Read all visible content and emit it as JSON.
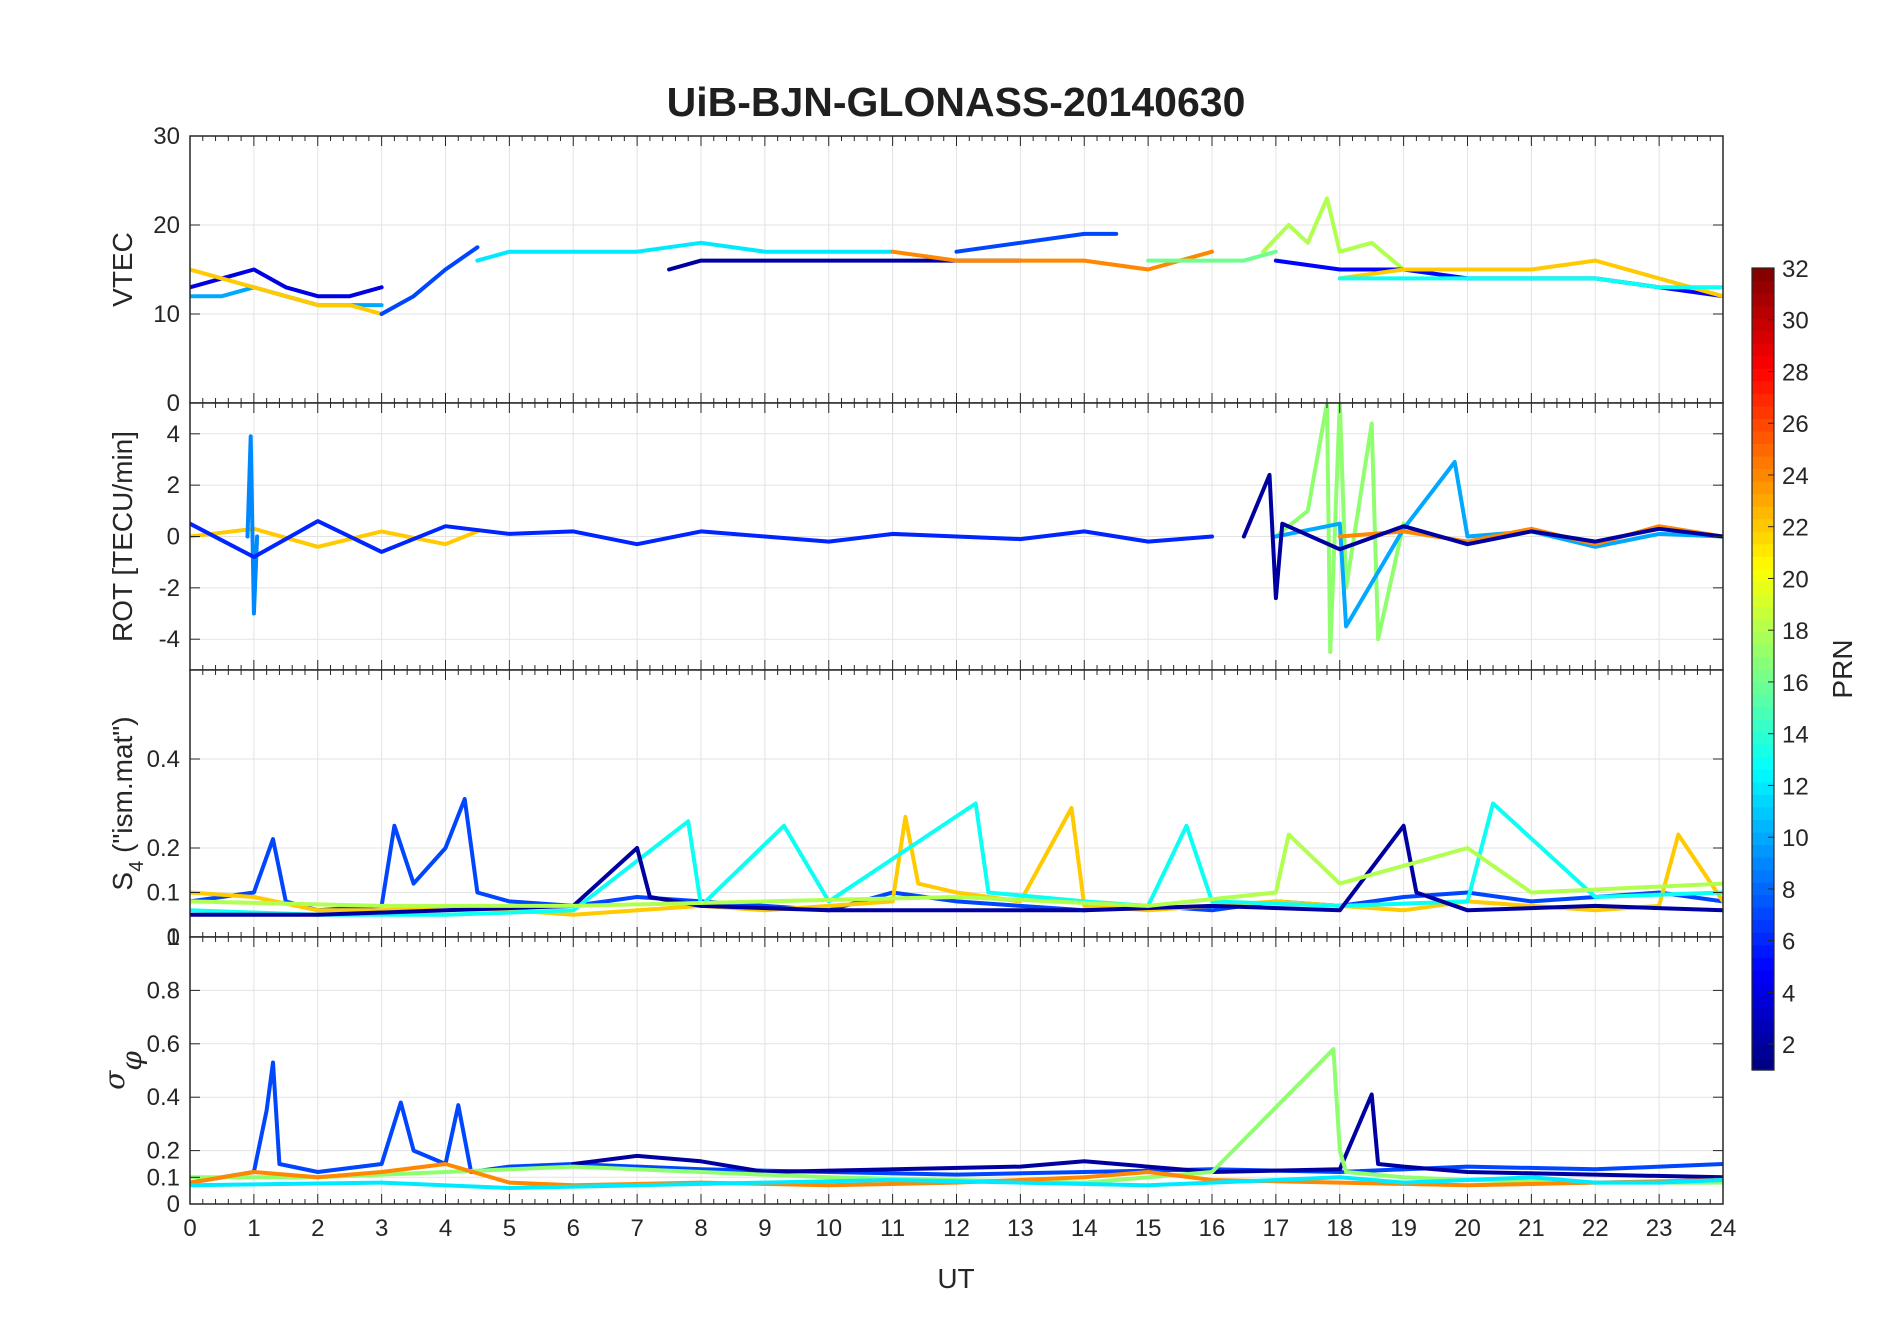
{
  "figure": {
    "title": "UiB-BJN-GLONASS-20140630",
    "xlabel": "UT"
  },
  "colorbar": {
    "label": "PRN",
    "range": [
      1,
      32
    ],
    "tick_labels": [
      "2",
      "4",
      "6",
      "8",
      "10",
      "12",
      "14",
      "16",
      "18",
      "20",
      "22",
      "24",
      "26",
      "28",
      "30",
      "32"
    ],
    "colormap": "jet"
  },
  "chart_data": [
    {
      "type": "line",
      "panel": "vtec",
      "ylabel": "VTEC",
      "xlim": [
        0,
        24
      ],
      "ylim": [
        0,
        30
      ],
      "yticks": [
        "0",
        "10",
        "20",
        "30"
      ],
      "xticks": [
        "0",
        "1",
        "2",
        "3",
        "4",
        "5",
        "6",
        "7",
        "8",
        "9",
        "10",
        "11",
        "12",
        "13",
        "14",
        "15",
        "16",
        "17",
        "18",
        "19",
        "20",
        "21",
        "22",
        "23",
        "24"
      ],
      "grid": true,
      "series": [
        {
          "prn": 4,
          "x": [
            0,
            0.5,
            1,
            1.5,
            2,
            2.5,
            3
          ],
          "y": [
            13,
            14,
            15,
            13,
            12,
            12,
            13
          ]
        },
        {
          "prn": 10,
          "x": [
            0,
            0.5,
            1,
            1.5,
            2,
            2.5,
            3
          ],
          "y": [
            12,
            12,
            13,
            12,
            11,
            11,
            11
          ]
        },
        {
          "prn": 22,
          "x": [
            0,
            0.5,
            1,
            1.5,
            2,
            2.5,
            3
          ],
          "y": [
            15,
            14,
            13,
            12,
            11,
            11,
            10
          ]
        },
        {
          "prn": 7,
          "x": [
            3,
            3.5,
            4,
            4.5
          ],
          "y": [
            10,
            12,
            15,
            17.5
          ]
        },
        {
          "prn": 12,
          "x": [
            4.5,
            5,
            6,
            7,
            8,
            9,
            10,
            11
          ],
          "y": [
            16,
            17,
            17,
            17,
            18,
            17,
            17,
            17
          ]
        },
        {
          "prn": 2,
          "x": [
            7.5,
            8,
            9,
            10,
            11,
            12,
            13
          ],
          "y": [
            15,
            16,
            16,
            16,
            16,
            16,
            16
          ]
        },
        {
          "prn": 24,
          "x": [
            11,
            12,
            13,
            14,
            15,
            16
          ],
          "y": [
            17,
            16,
            16,
            16,
            15,
            17
          ]
        },
        {
          "prn": 7,
          "x": [
            12,
            13,
            14,
            14.5
          ],
          "y": [
            17,
            18,
            19,
            19
          ]
        },
        {
          "prn": 16,
          "x": [
            15,
            16,
            16.5,
            17
          ],
          "y": [
            16,
            16,
            16,
            17
          ]
        },
        {
          "prn": 18,
          "x": [
            16.8,
            17.2,
            17.5,
            17.8,
            18,
            18.5,
            19
          ],
          "y": [
            17,
            20,
            18,
            23,
            17,
            18,
            15
          ]
        },
        {
          "prn": 5,
          "x": [
            17,
            18,
            19,
            20,
            21,
            22,
            23,
            24
          ],
          "y": [
            16,
            15,
            15,
            14,
            14,
            14,
            13,
            12
          ]
        },
        {
          "prn": 22,
          "x": [
            18,
            19,
            20,
            21,
            22,
            23,
            24
          ],
          "y": [
            14,
            15,
            15,
            15,
            16,
            14,
            12
          ]
        },
        {
          "prn": 13,
          "x": [
            18,
            19,
            20,
            21,
            22,
            23,
            24
          ],
          "y": [
            14,
            14,
            14,
            14,
            14,
            13,
            13
          ]
        }
      ]
    },
    {
      "type": "line",
      "panel": "rot",
      "ylabel": "ROT [TECU/min]",
      "xlim": [
        0,
        24
      ],
      "ylim": [
        -5.2,
        5.2
      ],
      "yticks": [
        "-4",
        "-2",
        "0",
        "2",
        "4"
      ],
      "xticks": [
        "0",
        "1",
        "2",
        "3",
        "4",
        "5",
        "6",
        "7",
        "8",
        "9",
        "10",
        "11",
        "12",
        "13",
        "14",
        "15",
        "16",
        "17",
        "18",
        "19",
        "20",
        "21",
        "22",
        "23",
        "24"
      ],
      "grid": true,
      "series": [
        {
          "prn": 22,
          "x": [
            0,
            1,
            2,
            3,
            4,
            4.5
          ],
          "y": [
            0,
            0.3,
            -0.4,
            0.2,
            -0.3,
            0.2
          ]
        },
        {
          "prn": 9,
          "x": [
            0.9,
            0.95,
            1,
            1.05
          ],
          "y": [
            0,
            3.9,
            -3,
            0
          ]
        },
        {
          "prn": 6,
          "x": [
            0,
            1,
            2,
            3,
            4,
            5,
            6,
            7,
            8,
            9,
            10,
            11,
            12,
            13,
            14,
            15,
            16
          ],
          "y": [
            0.5,
            -0.8,
            0.6,
            -0.6,
            0.4,
            0.1,
            0.2,
            -0.3,
            0.2,
            0,
            -0.2,
            0.1,
            0,
            -0.1,
            0.2,
            -0.2,
            0
          ]
        },
        {
          "prn": 17,
          "x": [
            17,
            17.5,
            17.8,
            17.85,
            18,
            18.1,
            18.5,
            18.6,
            19
          ],
          "y": [
            0,
            1,
            5.2,
            -4.5,
            5.2,
            -2,
            4.4,
            -4,
            0.5
          ]
        },
        {
          "prn": 10,
          "x": [
            17,
            18,
            18.1,
            19,
            19.8,
            20,
            21,
            22,
            23,
            24
          ],
          "y": [
            0,
            0.5,
            -3.5,
            0.3,
            2.9,
            0,
            0.2,
            -0.4,
            0.1,
            0
          ]
        },
        {
          "prn": 24,
          "x": [
            18,
            19,
            20,
            21,
            22,
            23,
            24
          ],
          "y": [
            0,
            0.2,
            -0.2,
            0.3,
            -0.3,
            0.4,
            0
          ]
        },
        {
          "prn": 2,
          "x": [
            16.5,
            16.9,
            17,
            17.1,
            18,
            19,
            20,
            21,
            22,
            23,
            24
          ],
          "y": [
            0,
            2.4,
            -2.4,
            0.5,
            -0.5,
            0.4,
            -0.3,
            0.2,
            -0.2,
            0.3,
            0
          ]
        }
      ]
    },
    {
      "type": "line",
      "panel": "s4",
      "ylabel": "S4 (\"ism.mat\")",
      "ylabel_main": "S",
      "ylabel_sub": "4",
      "ylabel_tail": " (\"ism.mat\")",
      "xlim": [
        0,
        24
      ],
      "ylim": [
        0,
        0.6
      ],
      "yticks": [
        "0",
        "0.1",
        "0.2",
        "0.4"
      ],
      "xticks": [
        "0",
        "1",
        "2",
        "3",
        "4",
        "5",
        "6",
        "7",
        "8",
        "9",
        "10",
        "11",
        "12",
        "13",
        "14",
        "15",
        "16",
        "17",
        "18",
        "19",
        "20",
        "21",
        "22",
        "23",
        "24"
      ],
      "grid": true,
      "series": [
        {
          "prn": 7,
          "x": [
            0,
            1,
            1.3,
            1.5,
            2,
            3,
            3.2,
            3.5,
            4,
            4.3,
            4.5,
            5,
            6,
            7,
            8,
            9,
            10,
            11,
            12,
            13,
            14,
            15,
            16,
            17,
            18,
            19,
            20,
            21,
            22,
            23,
            24
          ],
          "y": [
            0.08,
            0.1,
            0.22,
            0.08,
            0.06,
            0.07,
            0.25,
            0.12,
            0.2,
            0.31,
            0.1,
            0.08,
            0.07,
            0.09,
            0.08,
            0.07,
            0.06,
            0.1,
            0.08,
            0.07,
            0.06,
            0.07,
            0.06,
            0.08,
            0.07,
            0.09,
            0.1,
            0.08,
            0.09,
            0.1,
            0.08
          ]
        },
        {
          "prn": 22,
          "x": [
            0,
            1,
            2,
            3,
            4,
            5,
            6,
            7,
            8,
            9,
            10,
            11,
            11.2,
            11.4,
            12,
            13,
            13.8,
            14,
            15,
            16,
            17,
            18,
            19,
            20,
            21,
            22,
            23,
            23.3,
            24
          ],
          "y": [
            0.1,
            0.09,
            0.06,
            0.06,
            0.07,
            0.06,
            0.05,
            0.06,
            0.07,
            0.06,
            0.07,
            0.08,
            0.27,
            0.12,
            0.1,
            0.08,
            0.29,
            0.07,
            0.06,
            0.07,
            0.08,
            0.07,
            0.06,
            0.08,
            0.07,
            0.06,
            0.07,
            0.23,
            0.08
          ]
        },
        {
          "prn": 13,
          "x": [
            0,
            2,
            4,
            6,
            7.8,
            8,
            9.3,
            10,
            12.3,
            12.5,
            14,
            15,
            15.6,
            16,
            18,
            20,
            20.4,
            22,
            24
          ],
          "y": [
            0.06,
            0.05,
            0.05,
            0.06,
            0.26,
            0.07,
            0.25,
            0.08,
            0.3,
            0.1,
            0.08,
            0.07,
            0.25,
            0.08,
            0.07,
            0.08,
            0.3,
            0.09,
            0.1
          ]
        },
        {
          "prn": 2,
          "x": [
            0,
            2,
            4,
            6,
            7,
            7.2,
            8,
            10,
            12,
            14,
            16,
            18,
            19,
            19.2,
            20,
            22,
            24
          ],
          "y": [
            0.05,
            0.05,
            0.06,
            0.07,
            0.2,
            0.09,
            0.07,
            0.06,
            0.06,
            0.06,
            0.07,
            0.06,
            0.25,
            0.1,
            0.06,
            0.07,
            0.06
          ]
        },
        {
          "prn": 18,
          "x": [
            0,
            3,
            6,
            9,
            12,
            15,
            17,
            17.2,
            18,
            20,
            21,
            24
          ],
          "y": [
            0.08,
            0.07,
            0.07,
            0.08,
            0.09,
            0.07,
            0.1,
            0.23,
            0.12,
            0.2,
            0.1,
            0.12
          ]
        }
      ]
    },
    {
      "type": "line",
      "panel": "sigma_phi",
      "ylabel": "σφ",
      "ylabel_main": "σ",
      "ylabel_sub": "φ",
      "xlim": [
        0,
        24
      ],
      "ylim": [
        0,
        1
      ],
      "yticks": [
        "0",
        "0.1",
        "0.2",
        "0.4",
        "0.6",
        "0.8",
        "1"
      ],
      "xticks": [
        "0",
        "1",
        "2",
        "3",
        "4",
        "5",
        "6",
        "7",
        "8",
        "9",
        "10",
        "11",
        "12",
        "13",
        "14",
        "15",
        "16",
        "17",
        "18",
        "19",
        "20",
        "21",
        "22",
        "23",
        "24"
      ],
      "grid": true,
      "series": [
        {
          "prn": 7,
          "x": [
            0,
            1,
            1.2,
            1.3,
            1.4,
            2,
            3,
            3.3,
            3.5,
            4,
            4.2,
            4.4,
            5,
            6,
            8,
            10,
            12,
            14,
            16,
            18,
            20,
            22,
            24
          ],
          "y": [
            0.08,
            0.12,
            0.35,
            0.53,
            0.15,
            0.12,
            0.15,
            0.38,
            0.2,
            0.15,
            0.37,
            0.12,
            0.14,
            0.15,
            0.13,
            0.12,
            0.11,
            0.12,
            0.13,
            0.12,
            0.14,
            0.13,
            0.15
          ]
        },
        {
          "prn": 2,
          "x": [
            6,
            7,
            8,
            9,
            13,
            14,
            16,
            18,
            18.5,
            18.6,
            19,
            20,
            24
          ],
          "y": [
            0.15,
            0.18,
            0.16,
            0.12,
            0.14,
            0.16,
            0.12,
            0.13,
            0.41,
            0.15,
            0.14,
            0.12,
            0.1
          ]
        },
        {
          "prn": 17,
          "x": [
            0,
            2,
            4,
            6,
            8,
            10,
            12,
            14,
            16,
            17.9,
            18,
            18.1,
            19,
            20,
            22,
            24
          ],
          "y": [
            0.1,
            0.1,
            0.12,
            0.14,
            0.12,
            0.1,
            0.09,
            0.08,
            0.12,
            0.58,
            0.2,
            0.12,
            0.1,
            0.09,
            0.08,
            0.08
          ]
        },
        {
          "prn": 24,
          "x": [
            0,
            1,
            2,
            3,
            4,
            5,
            6,
            8,
            10,
            12,
            14,
            15,
            16,
            18,
            20,
            22,
            24
          ],
          "y": [
            0.08,
            0.12,
            0.1,
            0.12,
            0.15,
            0.08,
            0.07,
            0.08,
            0.07,
            0.08,
            0.1,
            0.12,
            0.09,
            0.08,
            0.07,
            0.08,
            0.09
          ]
        },
        {
          "prn": 12,
          "x": [
            0,
            3,
            5,
            7,
            9,
            11,
            13,
            15,
            17,
            18,
            19,
            20,
            21,
            22,
            23,
            24
          ],
          "y": [
            0.07,
            0.08,
            0.06,
            0.07,
            0.08,
            0.09,
            0.08,
            0.07,
            0.09,
            0.1,
            0.08,
            0.09,
            0.1,
            0.08,
            0.08,
            0.09
          ]
        }
      ]
    }
  ]
}
